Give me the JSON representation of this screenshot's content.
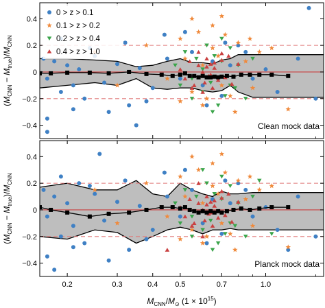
{
  "colors": {
    "z1": "#3f80c4",
    "z2": "#f08a3c",
    "z3": "#3aa44a",
    "z4": "#c94040",
    "band_fill": "#bebebe",
    "ref_dashed": "#e07a7a",
    "ref_zero": "#c94040"
  },
  "chart_data": [
    {
      "type": "scatter",
      "panel": "top",
      "annotation": "Clean mock data",
      "ylabel": "(M_CNN − M_true)/M_CNN",
      "xscale": "log",
      "xlim": [
        0.16,
        1.6
      ],
      "ylim": [
        -0.5,
        0.52
      ],
      "xticks": [
        0.2,
        0.3,
        0.4,
        0.5,
        0.7,
        1.0
      ],
      "xtick_labels": [],
      "yticks": [
        -0.4,
        -0.2,
        0,
        0.2,
        0.4
      ],
      "ytick_labels": [
        "−0.4",
        "−0.2",
        "0",
        "0.2",
        "0.4"
      ],
      "reference_lines": [
        {
          "y": 0.2,
          "style": "dashed"
        },
        {
          "y": -0.2,
          "style": "dashed"
        },
        {
          "y": 0.0,
          "style": "solid"
        }
      ],
      "legend": {
        "placement": "top-left",
        "entries": [
          {
            "label": "0 > z > 0.1",
            "marker": "circle",
            "color_key": "z1"
          },
          {
            "label": "0.1 > z > 0.2",
            "marker": "star",
            "color_key": "z2"
          },
          {
            "label": "0.2 > z > 0.4",
            "marker": "triangle-down",
            "color_key": "z3"
          },
          {
            "label": "0.4 > z > 1.0",
            "marker": "triangle-up",
            "color_key": "z4"
          }
        ]
      },
      "median": {
        "x": [
          0.16,
          0.175,
          0.2,
          0.24,
          0.28,
          0.33,
          0.38,
          0.43,
          0.47,
          0.5,
          0.52,
          0.54,
          0.56,
          0.58,
          0.6,
          0.62,
          0.64,
          0.66,
          0.68,
          0.7,
          0.73,
          0.77,
          0.82,
          0.88,
          0.95,
          1.05,
          1.2
        ],
        "y": [
          -0.01,
          -0.01,
          -0.005,
          -0.005,
          -0.01,
          0.0,
          -0.015,
          -0.02,
          -0.03,
          -0.02,
          -0.01,
          -0.03,
          -0.03,
          -0.04,
          -0.03,
          -0.04,
          -0.04,
          -0.035,
          -0.04,
          -0.035,
          -0.03,
          -0.035,
          -0.02,
          -0.02,
          -0.02,
          -0.02,
          -0.03
        ]
      },
      "band": {
        "x": [
          0.16,
          0.2,
          0.25,
          0.3,
          0.35,
          0.4,
          0.45,
          0.5,
          0.55,
          0.6,
          0.65,
          0.7,
          0.75,
          0.8,
          0.9,
          1.0,
          1.1,
          1.25,
          1.6
        ],
        "upper": [
          0.1,
          0.1,
          0.09,
          0.08,
          0.04,
          0.05,
          0.08,
          0.1,
          0.07,
          0.07,
          0.06,
          0.09,
          0.1,
          0.13,
          0.13,
          0.13,
          0.13,
          0.13,
          0.13
        ],
        "lower": [
          -0.12,
          -0.1,
          -0.08,
          -0.1,
          -0.05,
          -0.12,
          -0.13,
          -0.12,
          -0.12,
          -0.14,
          -0.15,
          -0.14,
          -0.1,
          -0.15,
          -0.19,
          -0.19,
          -0.19,
          -0.19,
          -0.19
        ]
      },
      "series": [
        {
          "color_key": "z1",
          "marker": "circle",
          "x": [
            0.165,
            0.17,
            0.18,
            0.19,
            0.2,
            0.21,
            0.22,
            0.23,
            0.25,
            0.27,
            0.3,
            0.33,
            0.36,
            0.4,
            0.45,
            0.5,
            0.55,
            0.6,
            0.65,
            0.7,
            0.75,
            0.8,
            0.9,
            1.0,
            1.1,
            1.3,
            1.5,
            0.17,
            0.19,
            0.21,
            0.24,
            0.28,
            0.32,
            0.38,
            0.44,
            0.52,
            0.62,
            0.72,
            0.85,
            0.17,
            0.35,
            1.42
          ],
          "y": [
            0.1,
            -0.05,
            0.08,
            -0.15,
            0.05,
            -0.1,
            0.02,
            -0.2,
            0.12,
            -0.08,
            0.06,
            -0.25,
            0.03,
            -0.12,
            0.1,
            -0.05,
            0.15,
            -0.1,
            0.08,
            -0.18,
            0.05,
            0.2,
            -0.05,
            0.02,
            -0.15,
            0.1,
            -0.2,
            -0.35,
            0.25,
            -0.28,
            0.18,
            -0.3,
            0.22,
            -0.22,
            0.28,
            0.3,
            -0.25,
            0.22,
            0.15,
            -0.45,
            -0.4,
            0.48
          ]
        },
        {
          "color_key": "z2",
          "marker": "star",
          "x": [
            0.25,
            0.3,
            0.38,
            0.45,
            0.5,
            0.52,
            0.55,
            0.58,
            0.6,
            0.62,
            0.65,
            0.68,
            0.7,
            0.72,
            0.75,
            0.8,
            0.85,
            0.9,
            0.95,
            1.05,
            0.5,
            0.55,
            0.6,
            0.65,
            0.7,
            0.78,
            0.88,
            1.2
          ],
          "y": [
            0.15,
            -0.1,
            0.2,
            -0.05,
            0.25,
            0.1,
            -0.15,
            0.3,
            0.05,
            -0.2,
            0.35,
            0.12,
            -0.1,
            0.28,
            -0.18,
            0.22,
            0.08,
            -0.12,
            0.15,
            0.18,
            -0.22,
            0.4,
            -0.25,
            0.18,
            0.42,
            -0.3,
            0.25,
            -0.28
          ]
        },
        {
          "color_key": "z3",
          "marker": "triangle-down",
          "x": [
            0.48,
            0.5,
            0.52,
            0.55,
            0.57,
            0.6,
            0.62,
            0.64,
            0.66,
            0.68,
            0.7,
            0.72,
            0.75,
            0.78,
            0.8,
            0.85,
            0.9,
            0.55,
            0.6,
            0.65,
            0.7,
            0.75
          ],
          "y": [
            0.05,
            -0.1,
            0.15,
            -0.2,
            0.1,
            -0.15,
            0.2,
            -0.08,
            0.12,
            -0.25,
            0.08,
            -0.18,
            0.18,
            -0.12,
            0.05,
            -0.2,
            0.1,
            -0.05,
            0.02,
            -0.3,
            0.25,
            -0.1
          ]
        },
        {
          "color_key": "z4",
          "marker": "triangle-up",
          "x": [
            0.5,
            0.52,
            0.54,
            0.56,
            0.58,
            0.6,
            0.61,
            0.62,
            0.63,
            0.64,
            0.65,
            0.66,
            0.68,
            0.7,
            0.72,
            0.74,
            0.76,
            0.58,
            0.6,
            0.62,
            0.64,
            0.66,
            0.55,
            0.7,
            0.8
          ],
          "y": [
            0.02,
            -0.05,
            0.08,
            -0.1,
            0.05,
            0.0,
            -0.08,
            0.1,
            -0.03,
            0.06,
            -0.12,
            0.03,
            -0.06,
            0.09,
            -0.04,
            0.12,
            -0.09,
            0.15,
            -0.15,
            0.04,
            -0.02,
            0.07,
            -0.12,
            0.14,
            0.06
          ]
        }
      ]
    },
    {
      "type": "scatter",
      "panel": "bottom",
      "annotation": "Planck mock data",
      "ylabel": "(M_CNN − M_true)/M_CNN",
      "xlabel": "M_CNN/M_⊙ (1 × 10^15)",
      "xscale": "log",
      "xlim": [
        0.16,
        1.6
      ],
      "ylim": [
        -0.5,
        0.52
      ],
      "xticks": [
        0.2,
        0.3,
        0.4,
        0.5,
        0.7,
        1.0
      ],
      "xtick_labels": [
        "0.2",
        "0.3",
        "0.4",
        "0.5",
        "0.7",
        "1.0"
      ],
      "yticks": [
        -0.4,
        -0.2,
        0,
        0.2,
        0.4
      ],
      "ytick_labels": [
        "−0.4",
        "−0.2",
        "0",
        "0.2",
        "0.4"
      ],
      "reference_lines": [
        {
          "y": 0.2,
          "style": "dashed"
        },
        {
          "y": -0.2,
          "style": "dashed"
        },
        {
          "y": 0.0,
          "style": "solid"
        }
      ],
      "median": {
        "x": [
          0.16,
          0.175,
          0.2,
          0.24,
          0.28,
          0.33,
          0.38,
          0.43,
          0.47,
          0.5,
          0.52,
          0.54,
          0.56,
          0.58,
          0.6,
          0.62,
          0.64,
          0.66,
          0.68,
          0.7,
          0.73,
          0.77,
          0.82,
          0.88,
          0.95,
          1.05,
          1.2
        ],
        "y": [
          0.02,
          0.0,
          -0.02,
          -0.05,
          -0.03,
          -0.02,
          0.0,
          0.02,
          0.02,
          0.01,
          0.02,
          0.0,
          -0.01,
          -0.02,
          -0.01,
          -0.02,
          -0.01,
          -0.02,
          -0.01,
          -0.02,
          -0.01,
          0.0,
          0.01,
          0.0,
          0.01,
          0.02,
          0.02
        ]
      },
      "band": {
        "x": [
          0.16,
          0.2,
          0.25,
          0.3,
          0.35,
          0.4,
          0.45,
          0.5,
          0.55,
          0.6,
          0.65,
          0.7,
          0.75,
          0.8,
          0.9,
          1.0,
          1.1,
          1.25,
          1.6
        ],
        "upper": [
          0.17,
          0.2,
          0.15,
          0.15,
          0.22,
          0.12,
          0.1,
          0.2,
          0.15,
          0.12,
          0.1,
          0.14,
          0.12,
          0.12,
          0.13,
          0.13,
          0.13,
          0.13,
          0.13
        ],
        "lower": [
          -0.2,
          -0.22,
          -0.15,
          -0.17,
          -0.25,
          -0.2,
          -0.15,
          -0.13,
          -0.15,
          -0.18,
          -0.15,
          -0.15,
          -0.14,
          -0.15,
          -0.15,
          -0.15,
          -0.15,
          -0.15,
          -0.15
        ]
      },
      "series": [
        {
          "color_key": "z1",
          "marker": "circle",
          "x": [
            0.165,
            0.17,
            0.18,
            0.19,
            0.2,
            0.21,
            0.22,
            0.23,
            0.25,
            0.27,
            0.3,
            0.33,
            0.36,
            0.4,
            0.45,
            0.5,
            0.55,
            0.6,
            0.65,
            0.7,
            0.75,
            0.8,
            0.9,
            1.0,
            1.1,
            1.3,
            1.5,
            0.17,
            0.19,
            0.21,
            0.24,
            0.28,
            0.32,
            0.38,
            0.44,
            0.52,
            0.62,
            0.72,
            0.85,
            0.18,
            0.26,
            1.2
          ],
          "y": [
            0.15,
            -0.05,
            0.1,
            -0.2,
            0.05,
            -0.12,
            0.2,
            -0.25,
            0.12,
            -0.08,
            0.06,
            -0.3,
            0.03,
            -0.15,
            0.1,
            -0.05,
            0.15,
            -0.1,
            0.08,
            -0.18,
            0.05,
            0.2,
            -0.05,
            0.02,
            -0.15,
            0.1,
            -0.2,
            -0.35,
            0.25,
            -0.28,
            0.18,
            -0.38,
            0.22,
            -0.22,
            0.28,
            0.3,
            -0.25,
            0.22,
            0.15,
            -0.45,
            0.42,
            -0.3
          ]
        },
        {
          "color_key": "z2",
          "marker": "star",
          "x": [
            0.25,
            0.3,
            0.38,
            0.45,
            0.5,
            0.52,
            0.55,
            0.58,
            0.6,
            0.62,
            0.65,
            0.68,
            0.7,
            0.72,
            0.75,
            0.8,
            0.85,
            0.9,
            0.95,
            1.05,
            0.5,
            0.55,
            0.6,
            0.65,
            0.7,
            0.78,
            0.88,
            1.2
          ],
          "y": [
            0.15,
            -0.1,
            0.2,
            -0.05,
            0.25,
            0.1,
            -0.15,
            0.3,
            0.05,
            -0.2,
            0.35,
            0.12,
            -0.1,
            0.28,
            -0.18,
            0.22,
            0.08,
            -0.12,
            0.15,
            0.18,
            -0.22,
            0.4,
            -0.25,
            0.18,
            0.42,
            -0.3,
            0.25,
            -0.28
          ]
        },
        {
          "color_key": "z3",
          "marker": "triangle-down",
          "x": [
            0.48,
            0.5,
            0.52,
            0.55,
            0.57,
            0.6,
            0.62,
            0.64,
            0.66,
            0.68,
            0.7,
            0.72,
            0.75,
            0.78,
            0.8,
            0.85,
            0.9,
            0.55,
            0.6,
            0.65,
            0.7,
            0.75,
            0.95,
            1.05
          ],
          "y": [
            0.05,
            -0.1,
            0.15,
            -0.2,
            0.1,
            -0.15,
            0.2,
            -0.08,
            0.12,
            -0.25,
            0.08,
            -0.18,
            0.18,
            -0.12,
            0.05,
            -0.2,
            0.1,
            -0.05,
            0.3,
            -0.3,
            0.25,
            -0.1,
            0.22,
            -0.18
          ]
        },
        {
          "color_key": "z4",
          "marker": "triangle-up",
          "x": [
            0.5,
            0.52,
            0.54,
            0.56,
            0.58,
            0.6,
            0.61,
            0.62,
            0.63,
            0.64,
            0.65,
            0.66,
            0.68,
            0.7,
            0.72,
            0.74,
            0.76,
            0.58,
            0.6,
            0.62,
            0.64,
            0.66,
            0.55,
            0.7,
            0.8,
            0.45
          ],
          "y": [
            0.02,
            -0.05,
            0.08,
            -0.1,
            0.05,
            0.0,
            -0.08,
            0.1,
            -0.03,
            0.06,
            -0.12,
            0.03,
            -0.06,
            0.09,
            -0.04,
            0.12,
            -0.09,
            0.2,
            -0.2,
            0.04,
            -0.02,
            0.07,
            -0.12,
            0.14,
            0.06,
            -0.3
          ]
        }
      ]
    }
  ]
}
